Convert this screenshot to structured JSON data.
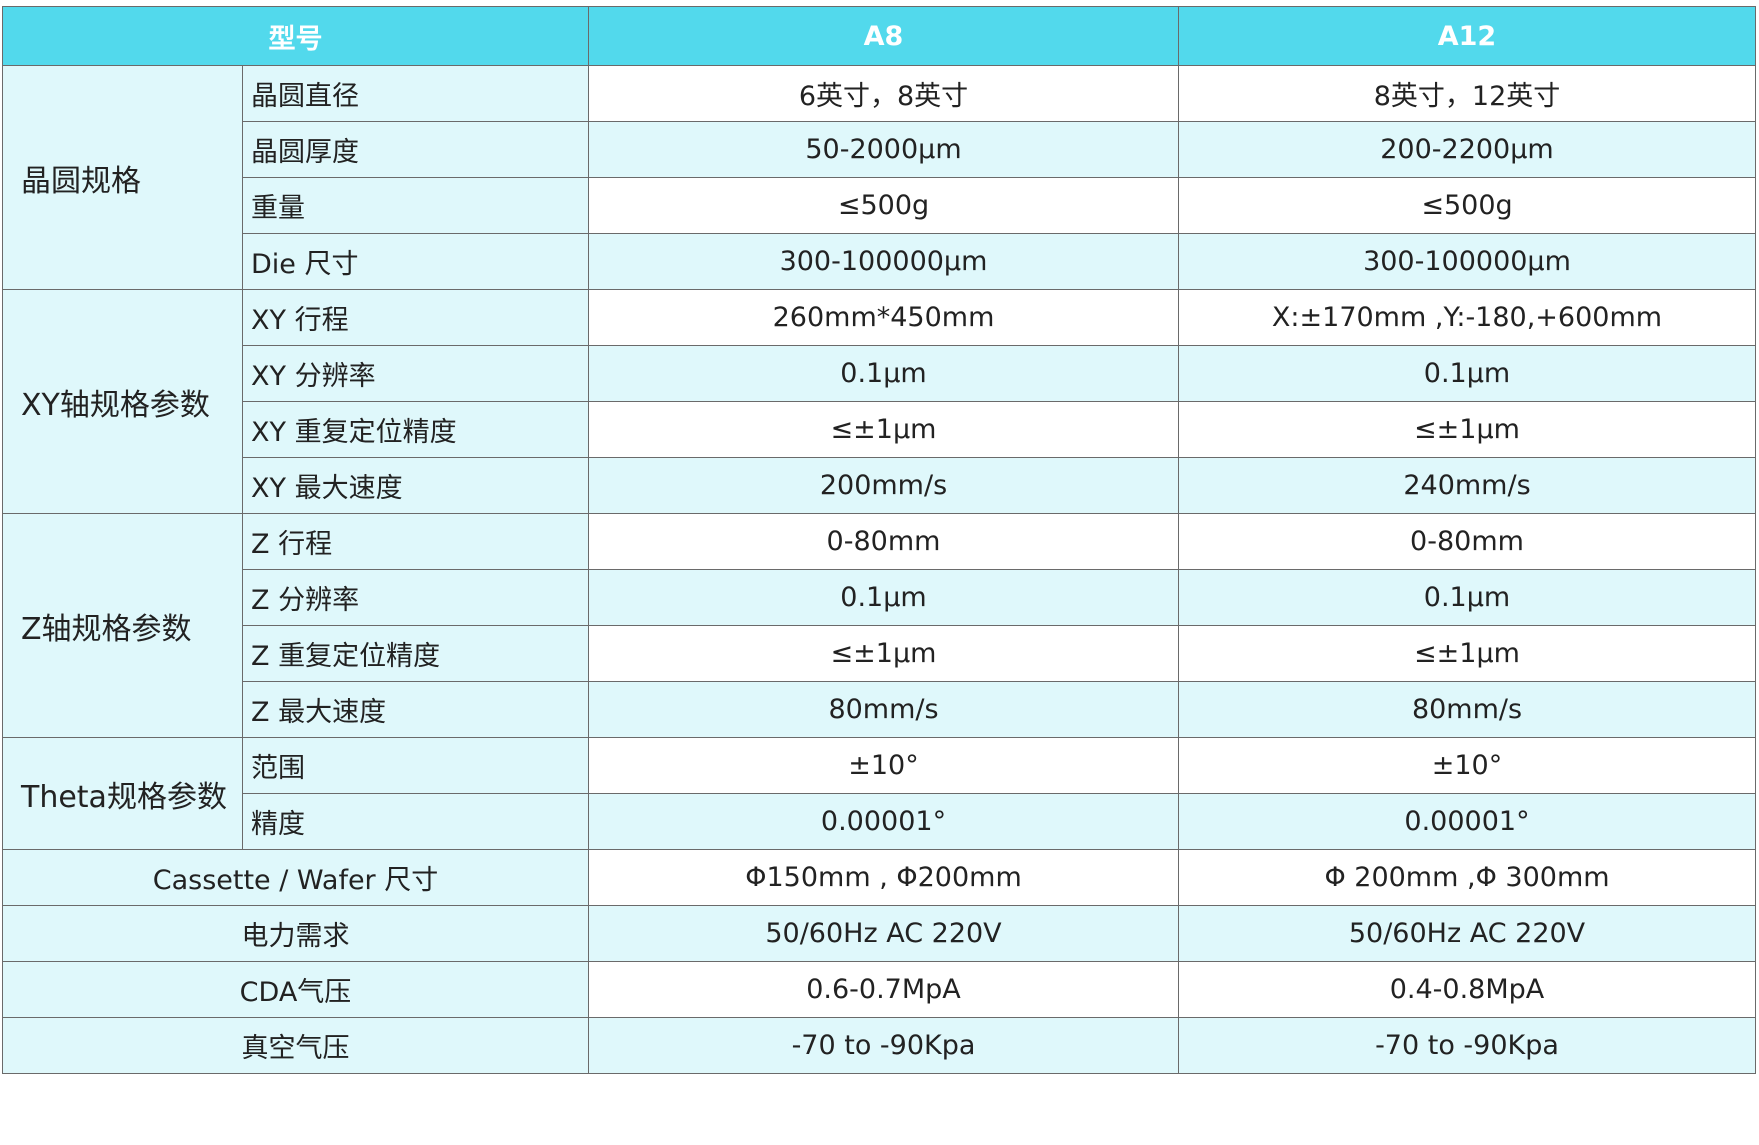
{
  "header": {
    "model_label": "型号",
    "models": [
      "A8",
      "A12"
    ]
  },
  "colors": {
    "header_bg": "#52d9ec",
    "label_bg": "#dff8fb",
    "alt_row_bg": "#dff8fb"
  },
  "groups": [
    {
      "name": "晶圆规格",
      "rows": [
        {
          "label": "晶圆直径",
          "a8": "6英寸，8英寸",
          "a12": "8英寸，12英寸"
        },
        {
          "label": "晶圆厚度",
          "a8": "50-2000μm",
          "a12": "200-2200μm"
        },
        {
          "label": "重量",
          "a8": "≤500g",
          "a12": "≤500g"
        },
        {
          "label": "Die 尺寸",
          "a8": "300-100000μm",
          "a12": "300-100000μm"
        }
      ]
    },
    {
      "name": "XY轴规格参数",
      "rows": [
        {
          "label": "XY 行程",
          "a8": "260mm*450mm",
          "a12": "X:±170mm ,Y:-180,+600mm"
        },
        {
          "label": "XY 分辨率",
          "a8": "0.1μm",
          "a12": "0.1μm"
        },
        {
          "label": "XY 重复定位精度",
          "a8": "≤±1μm",
          "a12": "≤±1μm"
        },
        {
          "label": "XY 最大速度",
          "a8": "200mm/s",
          "a12": "240mm/s"
        }
      ]
    },
    {
      "name": "Z轴规格参数",
      "rows": [
        {
          "label": "Z 行程",
          "a8": "0-80mm",
          "a12": "0-80mm"
        },
        {
          "label": "Z 分辨率",
          "a8": "0.1μm",
          "a12": "0.1μm"
        },
        {
          "label": "Z 重复定位精度",
          "a8": "≤±1μm",
          "a12": "≤±1μm"
        },
        {
          "label": "Z 最大速度",
          "a8": "80mm/s",
          "a12": "80mm/s"
        }
      ]
    },
    {
      "name": "Theta规格参数",
      "rows": [
        {
          "label": "范围",
          "a8": "±10°",
          "a12": "±10°"
        },
        {
          "label": "精度",
          "a8": "0.00001°",
          "a12": "0.00001°"
        }
      ]
    }
  ],
  "single_rows": [
    {
      "label": "Cassette / Wafer 尺寸",
      "a8": "Φ150mm , Φ200mm",
      "a12": "Φ 200mm ,Φ 300mm"
    },
    {
      "label": "电力需求",
      "a8": "50/60Hz  AC 220V",
      "a12": "50/60Hz  AC 220V"
    },
    {
      "label": "CDA气压",
      "a8": "0.6-0.7MpA",
      "a12": "0.4-0.8MpA"
    },
    {
      "label": "真空气压",
      "a8": "-70 to -90Kpa",
      "a12": "-70 to -90Kpa"
    }
  ]
}
